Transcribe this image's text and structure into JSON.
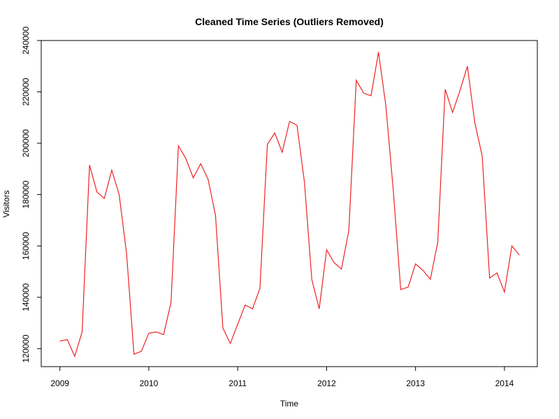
{
  "chart_data": {
    "type": "line",
    "title": "Cleaned Time Series (Outliers Removed)",
    "xlabel": "Time",
    "ylabel": "Visitors",
    "xlim": [
      2008.79,
      2014.37
    ],
    "ylim": [
      113000,
      240000
    ],
    "x_ticks": [
      2009,
      2010,
      2011,
      2012,
      2013,
      2014
    ],
    "x_tick_labels": [
      "2009",
      "2010",
      "2011",
      "2012",
      "2013",
      "2014"
    ],
    "y_ticks": [
      120000,
      140000,
      160000,
      180000,
      200000,
      220000,
      240000
    ],
    "y_tick_labels": [
      "120000",
      "140000",
      "160000",
      "180000",
      "200000",
      "220000",
      "240000"
    ],
    "grid": false,
    "legend": "none",
    "series": [
      {
        "color": "#ee2222",
        "start_year": 2009,
        "start_month": 1,
        "frequency": 12,
        "values": [
          123000,
          123500,
          117000,
          126500,
          191500,
          181000,
          178500,
          189500,
          180000,
          157000,
          117800,
          119000,
          126000,
          126500,
          125500,
          138000,
          199000,
          194000,
          186500,
          192000,
          186000,
          172000,
          128000,
          122000,
          129500,
          137000,
          135500,
          143500,
          199500,
          204000,
          196500,
          208500,
          207000,
          185000,
          147000,
          135500,
          158500,
          153500,
          151000,
          166000,
          224500,
          219500,
          218500,
          235500,
          214500,
          181500,
          143000,
          144000,
          153000,
          150500,
          147000,
          161500,
          221000,
          212000,
          220500,
          230000,
          208000,
          195000,
          147500,
          149500,
          142000,
          160000,
          156500
        ]
      }
    ]
  }
}
